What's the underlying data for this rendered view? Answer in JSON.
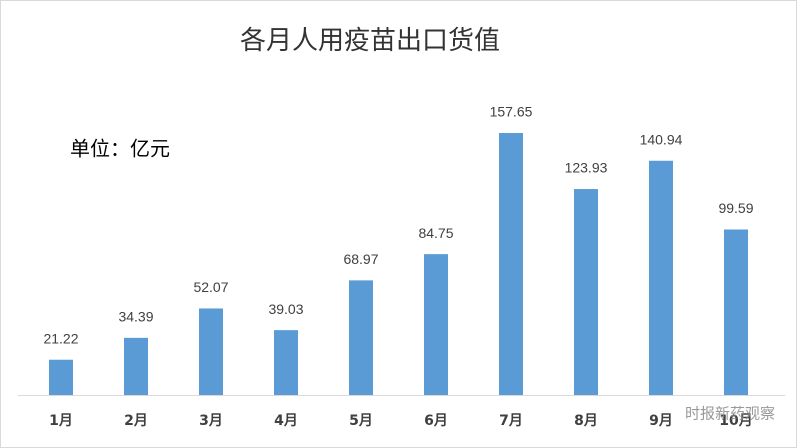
{
  "chart_data": {
    "type": "bar",
    "title": "各月人用疫苗出口货值",
    "annotation": "单位：亿元",
    "categories": [
      "1月",
      "2月",
      "3月",
      "4月",
      "5月",
      "6月",
      "7月",
      "8月",
      "9月",
      "10月"
    ],
    "values": [
      21.22,
      34.39,
      52.07,
      39.03,
      68.97,
      84.75,
      157.65,
      123.93,
      140.94,
      99.59
    ],
    "color": "#5b9bd5",
    "watermark": "时报新药观察"
  }
}
